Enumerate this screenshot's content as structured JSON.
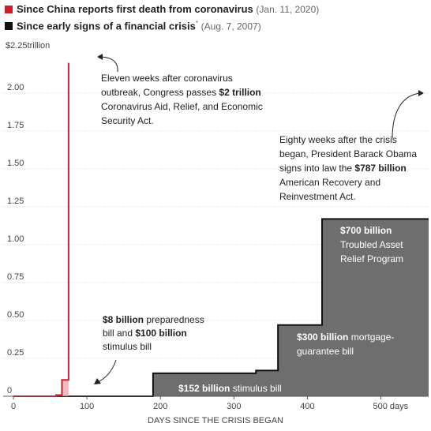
{
  "legend": [
    {
      "title": "Since China reports first death from coronavirus",
      "date": "(Jan. 11, 2020)",
      "color": "#c8202f"
    },
    {
      "title": "Since early signs of a financial crisis",
      "mark": "*",
      "date": "(Aug. 7, 2007)",
      "color": "#111111"
    }
  ],
  "chart_data": {
    "type": "area",
    "xlabel": "DAYS SINCE THE CRISIS BEGAN",
    "ylabel": "",
    "y_unit_label": "$2.25trillion",
    "xlim": [
      -14,
      565
    ],
    "ylim": [
      0,
      2.25
    ],
    "x_ticks": [
      {
        "value": 0,
        "label": "0"
      },
      {
        "value": 100,
        "label": "100"
      },
      {
        "value": 200,
        "label": "200"
      },
      {
        "value": 300,
        "label": "300"
      },
      {
        "value": 400,
        "label": "400"
      },
      {
        "value": 500,
        "label": "500 days"
      }
    ],
    "y_ticks": [
      {
        "value": 0,
        "label": "0"
      },
      {
        "value": 0.25,
        "label": "0.25"
      },
      {
        "value": 0.5,
        "label": "0.50"
      },
      {
        "value": 0.75,
        "label": "0.75"
      },
      {
        "value": 1.0,
        "label": "1.00"
      },
      {
        "value": 1.25,
        "label": "1.25"
      },
      {
        "value": 1.5,
        "label": "1.50"
      },
      {
        "value": 1.75,
        "label": "1.75"
      },
      {
        "value": 2.0,
        "label": "2.00"
      }
    ],
    "grid": true,
    "series": [
      {
        "name": "Since early signs of a financial crisis",
        "color": "#111111",
        "fill": "#6e6e6e",
        "x": [
          0,
          190,
          190,
          330,
          330,
          360,
          360,
          420,
          420,
          565
        ],
        "y": [
          0,
          0,
          0.152,
          0.152,
          0.17,
          0.17,
          0.47,
          0.47,
          1.17,
          1.17
        ]
      },
      {
        "name": "Since China reports first death from coronavirus",
        "color": "#c8202f",
        "fill": "#f2b8c0",
        "x": [
          0,
          58,
          58,
          66,
          66,
          75,
          75
        ],
        "y": [
          0,
          0,
          0.008,
          0.008,
          0.108,
          0.108,
          2.2
        ]
      }
    ],
    "annotations": [
      {
        "id": "covid-cares",
        "lines": [
          [
            {
              "t": "Eleven weeks after coronavirus",
              "b": false
            }
          ],
          [
            {
              "t": "outbreak, Congress passes ",
              "b": false
            },
            {
              "t": "$2 trillion",
              "b": true
            }
          ],
          [
            {
              "t": "Coronavirus Aid, Relief, and Economic",
              "b": false
            }
          ],
          [
            {
              "t": "Security Act.",
              "b": false
            }
          ]
        ]
      },
      {
        "id": "obama-recovery",
        "lines": [
          [
            {
              "t": "Eighty weeks after the crisis",
              "b": false
            }
          ],
          [
            {
              "t": "began, President Barack Obama",
              "b": false
            }
          ],
          [
            {
              "t": "signs into law the ",
              "b": false
            },
            {
              "t": "$787 billion",
              "b": true
            }
          ],
          [
            {
              "t": "American Recovery and",
              "b": false
            }
          ],
          [
            {
              "t": "Reinvestment Act.",
              "b": false
            }
          ]
        ]
      },
      {
        "id": "tarp",
        "lines": [
          [
            {
              "t": "$700 billion",
              "b": true
            }
          ],
          [
            {
              "t": "Troubled Asset",
              "b": false
            }
          ],
          [
            {
              "t": "Relief Program",
              "b": false
            }
          ]
        ]
      },
      {
        "id": "mortgage-guarantee",
        "lines": [
          [
            {
              "t": "$300 billion",
              "b": true
            },
            {
              "t": " mortgage-",
              "b": false
            }
          ],
          [
            {
              "t": "guarantee bill",
              "b": false
            }
          ]
        ]
      },
      {
        "id": "stimulus-152",
        "lines": [
          [
            {
              "t": "$152 billion",
              "b": true
            },
            {
              "t": " stimulus bill",
              "b": false
            }
          ]
        ]
      },
      {
        "id": "preparedness",
        "lines": [
          [
            {
              "t": "$8 billion",
              "b": true
            },
            {
              "t": " preparedness",
              "b": false
            }
          ],
          [
            {
              "t": "bill and ",
              "b": false
            },
            {
              "t": "$100 billion",
              "b": true
            }
          ],
          [
            {
              "t": "stimulus bill",
              "b": false
            }
          ]
        ]
      }
    ]
  }
}
